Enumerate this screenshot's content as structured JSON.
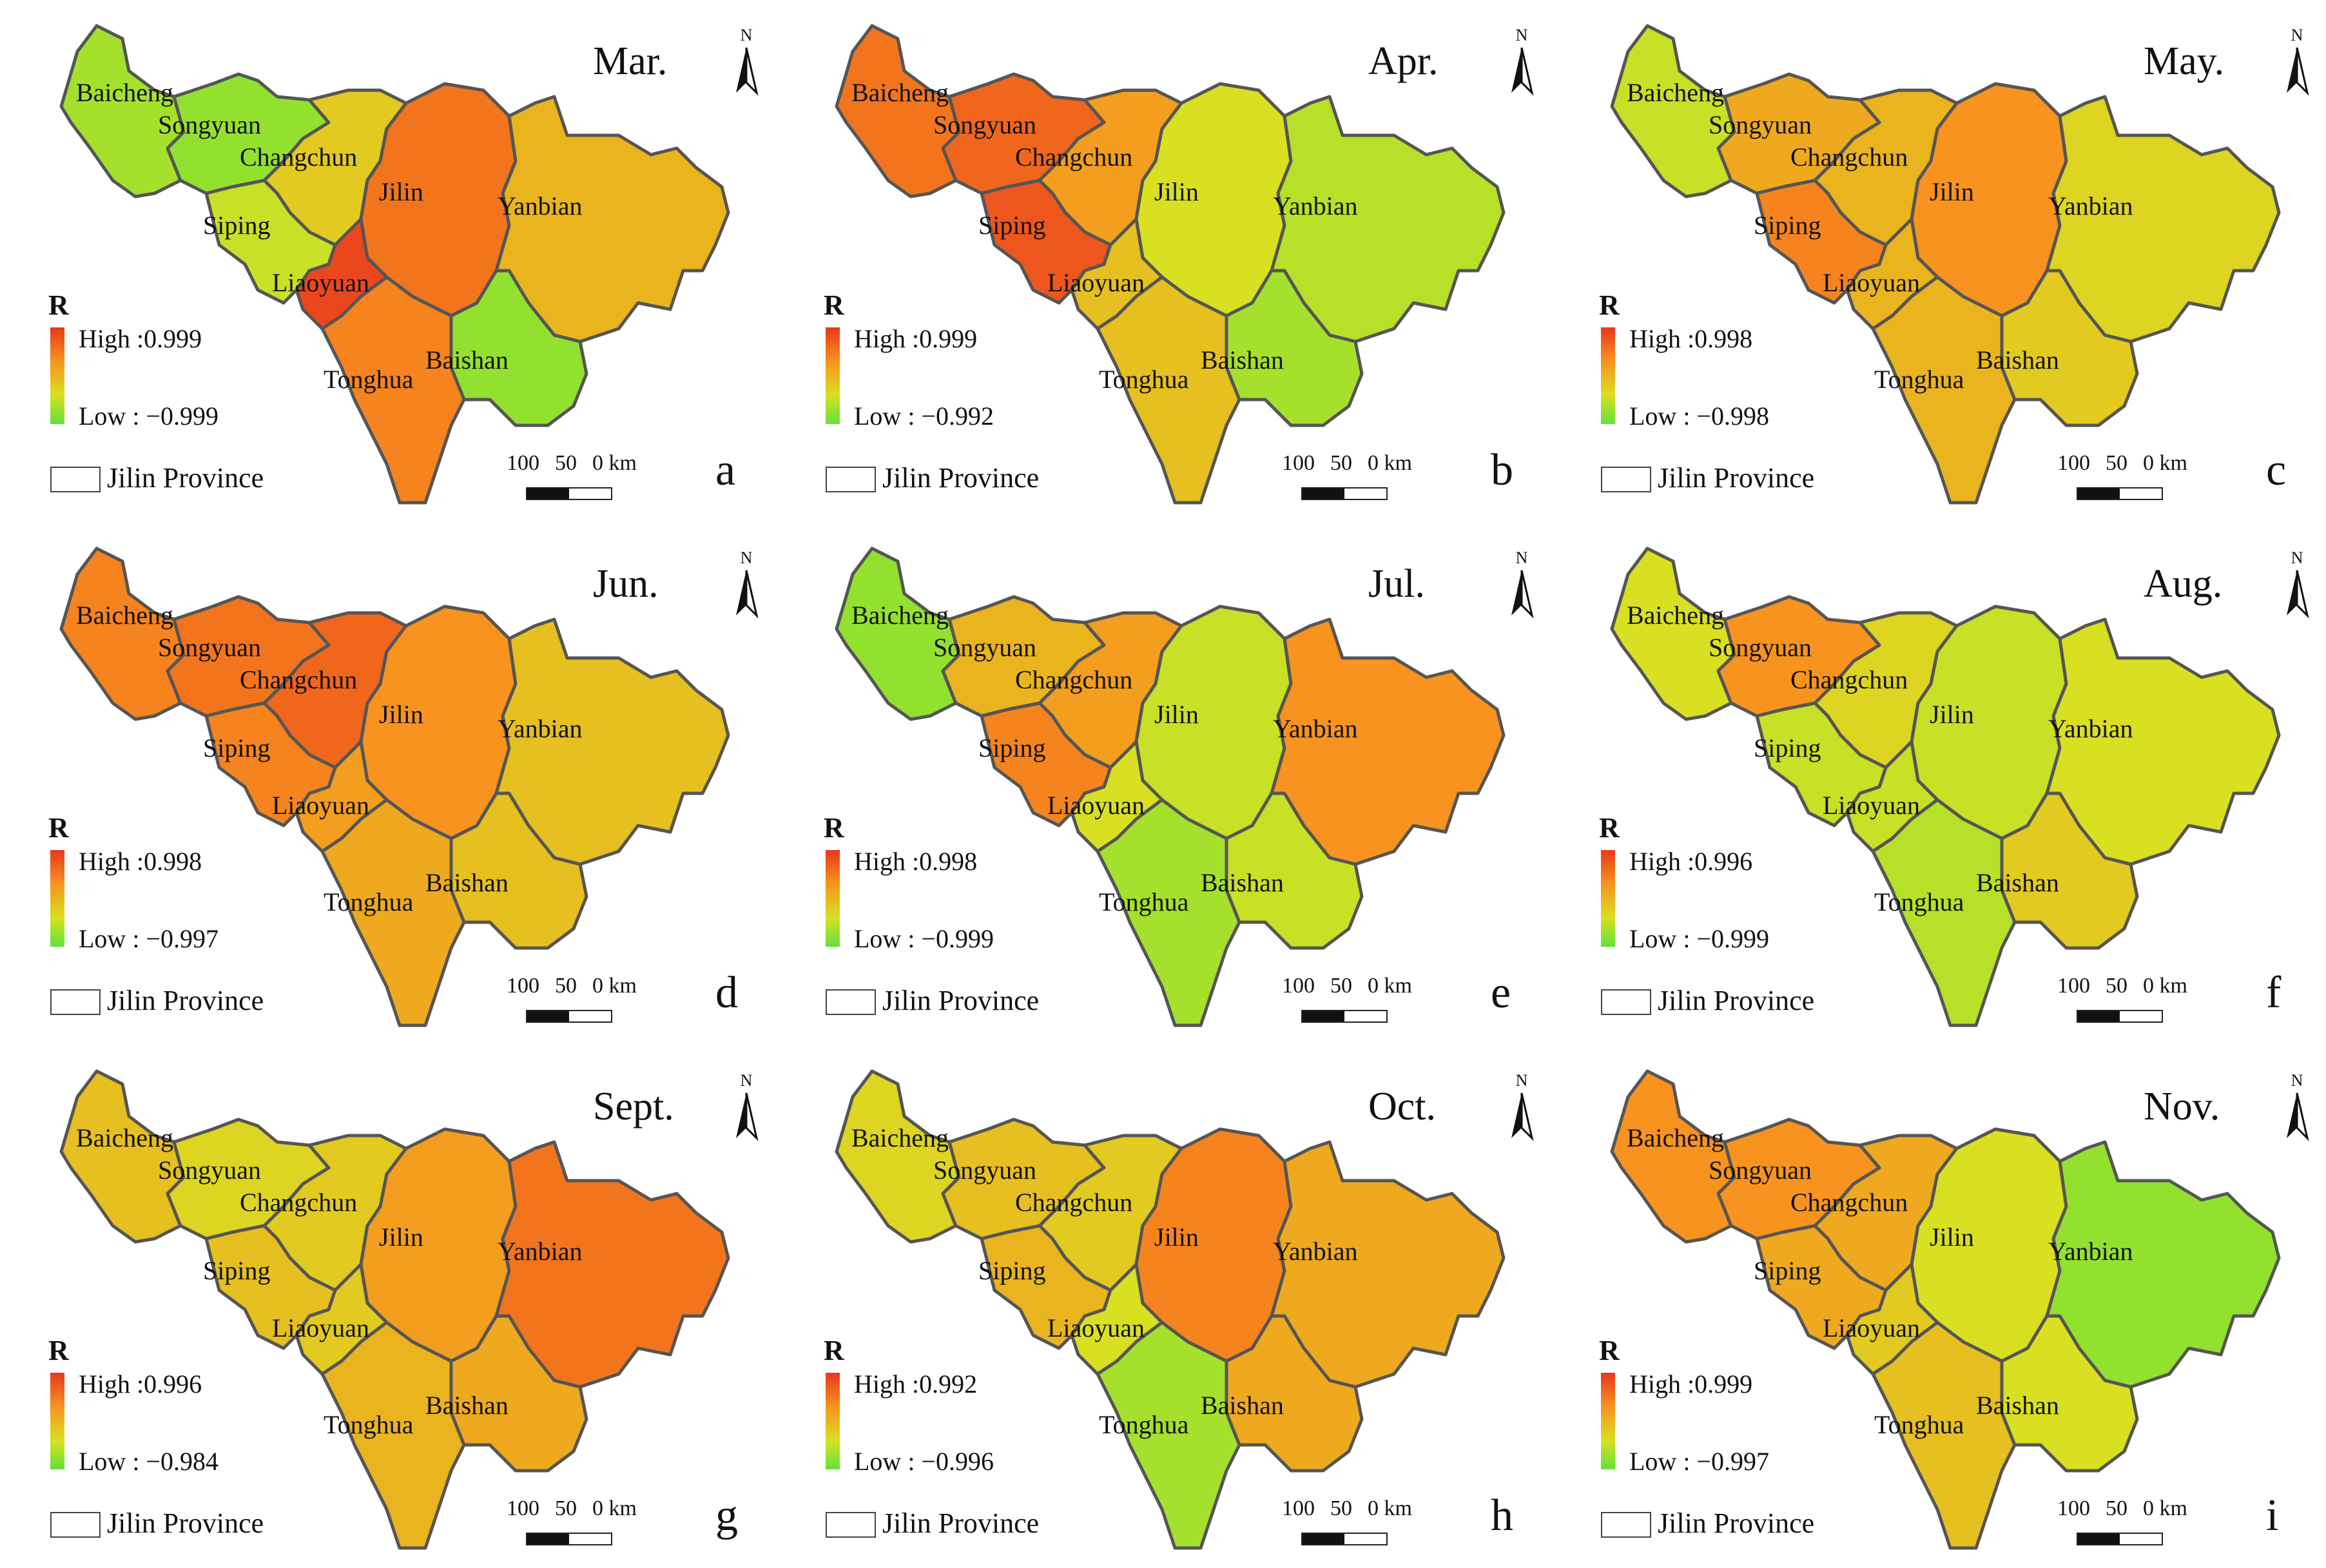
{
  "legend": {
    "title": "R",
    "province_label": "Jilin Province",
    "scale_labels": [
      "100",
      "50",
      "0 km"
    ],
    "north": "N"
  },
  "colors": {
    "high": "#e8381c",
    "mid_high": "#f7931e",
    "mid_low": "#d9e021",
    "low": "#5fe23a"
  },
  "cities": [
    "Baicheng",
    "Songyuan",
    "Changchun",
    "Jilin",
    "Yanbian",
    "Siping",
    "Liaoyuan",
    "Baishan",
    "Tonghua"
  ],
  "panels": [
    {
      "month": "Mar.",
      "letter": "a",
      "high": "High :0.999",
      "low": "Low : −0.999",
      "levels": {
        "Baicheng": 0.2,
        "Songyuan": 0.15,
        "Changchun": 0.45,
        "Jilin": 0.8,
        "Yanbian": 0.55,
        "Siping": 0.3,
        "Liaoyuan": 0.95,
        "Baishan": 0.15,
        "Tonghua": 0.75
      }
    },
    {
      "month": "Apr.",
      "letter": "b",
      "high": "High :0.999",
      "low": "Low : −0.992",
      "levels": {
        "Baicheng": 0.8,
        "Songyuan": 0.85,
        "Changchun": 0.65,
        "Jilin": 0.35,
        "Yanbian": 0.25,
        "Siping": 0.9,
        "Liaoyuan": 0.5,
        "Baishan": 0.2,
        "Tonghua": 0.5
      }
    },
    {
      "month": "May.",
      "letter": "c",
      "high": "High :0.998",
      "low": "Low : −0.998",
      "levels": {
        "Baicheng": 0.3,
        "Songyuan": 0.6,
        "Changchun": 0.55,
        "Jilin": 0.7,
        "Yanbian": 0.4,
        "Siping": 0.75,
        "Liaoyuan": 0.55,
        "Baishan": 0.45,
        "Tonghua": 0.55
      }
    },
    {
      "month": "Jun.",
      "letter": "d",
      "high": "High :0.998",
      "low": "Low : −0.997",
      "levels": {
        "Baicheng": 0.75,
        "Songyuan": 0.8,
        "Changchun": 0.85,
        "Jilin": 0.7,
        "Yanbian": 0.5,
        "Siping": 0.75,
        "Liaoyuan": 0.65,
        "Baishan": 0.5,
        "Tonghua": 0.6
      }
    },
    {
      "month": "Jul.",
      "letter": "e",
      "high": "High :0.998",
      "low": "Low : −0.999",
      "levels": {
        "Baicheng": 0.15,
        "Songyuan": 0.55,
        "Changchun": 0.65,
        "Jilin": 0.3,
        "Yanbian": 0.7,
        "Siping": 0.75,
        "Liaoyuan": 0.35,
        "Baishan": 0.3,
        "Tonghua": 0.2
      }
    },
    {
      "month": "Aug.",
      "letter": "f",
      "high": "High :0.996",
      "low": "Low : −0.999",
      "levels": {
        "Baicheng": 0.35,
        "Songyuan": 0.7,
        "Changchun": 0.4,
        "Jilin": 0.3,
        "Yanbian": 0.35,
        "Siping": 0.3,
        "Liaoyuan": 0.3,
        "Baishan": 0.45,
        "Tonghua": 0.25
      }
    },
    {
      "month": "Sept.",
      "letter": "g",
      "high": "High :0.996",
      "low": "Low : −0.984",
      "levels": {
        "Baicheng": 0.5,
        "Songyuan": 0.4,
        "Changchun": 0.45,
        "Jilin": 0.65,
        "Yanbian": 0.8,
        "Siping": 0.5,
        "Liaoyuan": 0.45,
        "Baishan": 0.6,
        "Tonghua": 0.55
      }
    },
    {
      "month": "Oct.",
      "letter": "h",
      "high": "High :0.992",
      "low": "Low : −0.996",
      "levels": {
        "Baicheng": 0.4,
        "Songyuan": 0.5,
        "Changchun": 0.45,
        "Jilin": 0.75,
        "Yanbian": 0.6,
        "Siping": 0.55,
        "Liaoyuan": 0.35,
        "Baishan": 0.6,
        "Tonghua": 0.2
      }
    },
    {
      "month": "Nov.",
      "letter": "i",
      "high": "High :0.999",
      "low": "Low : −0.997",
      "levels": {
        "Baicheng": 0.7,
        "Songyuan": 0.7,
        "Changchun": 0.6,
        "Jilin": 0.35,
        "Yanbian": 0.15,
        "Siping": 0.6,
        "Liaoyuan": 0.45,
        "Baishan": 0.35,
        "Tonghua": 0.5
      }
    }
  ]
}
